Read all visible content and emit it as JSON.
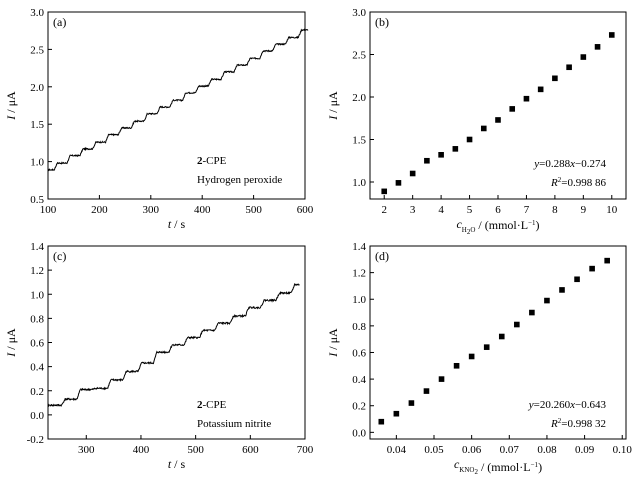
{
  "chart_data": [
    {
      "id": "a",
      "type": "line",
      "panel_label": "(a)",
      "xlabel": "t / s",
      "ylabel": "I / μA",
      "xlim": [
        100,
        600
      ],
      "ylim": [
        0.5,
        3.0
      ],
      "xticks": [
        100,
        200,
        300,
        400,
        500,
        600
      ],
      "yticks": [
        0.5,
        1.0,
        1.5,
        2.0,
        2.5,
        3.0
      ],
      "grid": false,
      "annotations": [
        "2-CPE",
        "Hydrogen peroxide"
      ],
      "steps": {
        "x_start": 100,
        "x_end": 606,
        "first_step": 112,
        "step_interval": 25,
        "base": 0.89,
        "increment": 0.0935,
        "values": [
          0.89,
          0.98,
          1.08,
          1.17,
          1.26,
          1.36,
          1.45,
          1.54,
          1.64,
          1.73,
          1.82,
          1.92,
          2.01,
          2.1,
          2.2,
          2.29,
          2.38,
          2.48,
          2.57,
          2.66,
          2.76
        ]
      }
    },
    {
      "id": "b",
      "type": "scatter",
      "panel_label": "(b)",
      "xlabel": "c_{H2O} / (mmol·L⁻¹)",
      "ylabel": "I / μA",
      "xlim": [
        1.5,
        10.5
      ],
      "ylim": [
        0.8,
        3.0
      ],
      "xticks": [
        2,
        3,
        4,
        5,
        6,
        7,
        8,
        9,
        10
      ],
      "yticks": [
        1.0,
        1.5,
        2.0,
        2.5,
        3.0
      ],
      "grid": false,
      "x": [
        2.0,
        2.5,
        3.0,
        3.5,
        4.0,
        4.5,
        5.0,
        5.5,
        6.0,
        6.5,
        7.0,
        7.5,
        8.0,
        8.5,
        9.0,
        9.5,
        10.0
      ],
      "y": [
        0.89,
        0.99,
        1.1,
        1.25,
        1.32,
        1.39,
        1.5,
        1.63,
        1.73,
        1.86,
        1.98,
        2.09,
        2.22,
        2.35,
        2.47,
        2.59,
        2.73
      ],
      "annotations": [
        "y=0.288x−0.274",
        "R²=0.998 86"
      ]
    },
    {
      "id": "c",
      "type": "line",
      "panel_label": "(c)",
      "xlabel": "t / s",
      "ylabel": "I / μA",
      "xlim": [
        230,
        700
      ],
      "ylim": [
        -0.2,
        1.4
      ],
      "xticks": [
        300,
        400,
        500,
        600,
        700
      ],
      "yticks": [
        -0.2,
        0.0,
        0.2,
        0.4,
        0.6,
        0.8,
        1.0,
        1.2,
        1.4
      ],
      "grid": false,
      "annotations": [
        "2-CPE",
        "Potassium nitrite"
      ],
      "steps": {
        "x_start": 230,
        "x_end": 690,
        "first_step": 255,
        "step_interval": 28,
        "base": 0.08,
        "increment": 0.0765,
        "values": [
          0.08,
          0.13,
          0.21,
          0.22,
          0.29,
          0.36,
          0.43,
          0.52,
          0.58,
          0.64,
          0.7,
          0.76,
          0.82,
          0.89,
          0.95,
          1.01,
          1.08,
          1.17,
          1.23,
          1.29
        ]
      }
    },
    {
      "id": "d",
      "type": "scatter",
      "panel_label": "(d)",
      "xlabel": "c_{KNO2} / (mmol·L⁻¹)",
      "ylabel": "I / μA",
      "xlim": [
        0.033,
        0.101
      ],
      "ylim": [
        -0.05,
        1.4
      ],
      "xticks": [
        0.04,
        0.05,
        0.06,
        0.07,
        0.08,
        0.09,
        0.1
      ],
      "yticks": [
        0.0,
        0.2,
        0.4,
        0.6,
        0.8,
        1.0,
        1.2,
        1.4
      ],
      "grid": false,
      "x": [
        0.036,
        0.04,
        0.044,
        0.048,
        0.052,
        0.056,
        0.06,
        0.064,
        0.068,
        0.072,
        0.076,
        0.08,
        0.084,
        0.088,
        0.092,
        0.096
      ],
      "y": [
        0.08,
        0.14,
        0.22,
        0.31,
        0.4,
        0.5,
        0.57,
        0.64,
        0.72,
        0.81,
        0.9,
        0.99,
        1.07,
        1.15,
        1.23,
        1.29
      ],
      "annotations": [
        "y=20.260x−0.643",
        "R²=0.998 32"
      ]
    }
  ]
}
